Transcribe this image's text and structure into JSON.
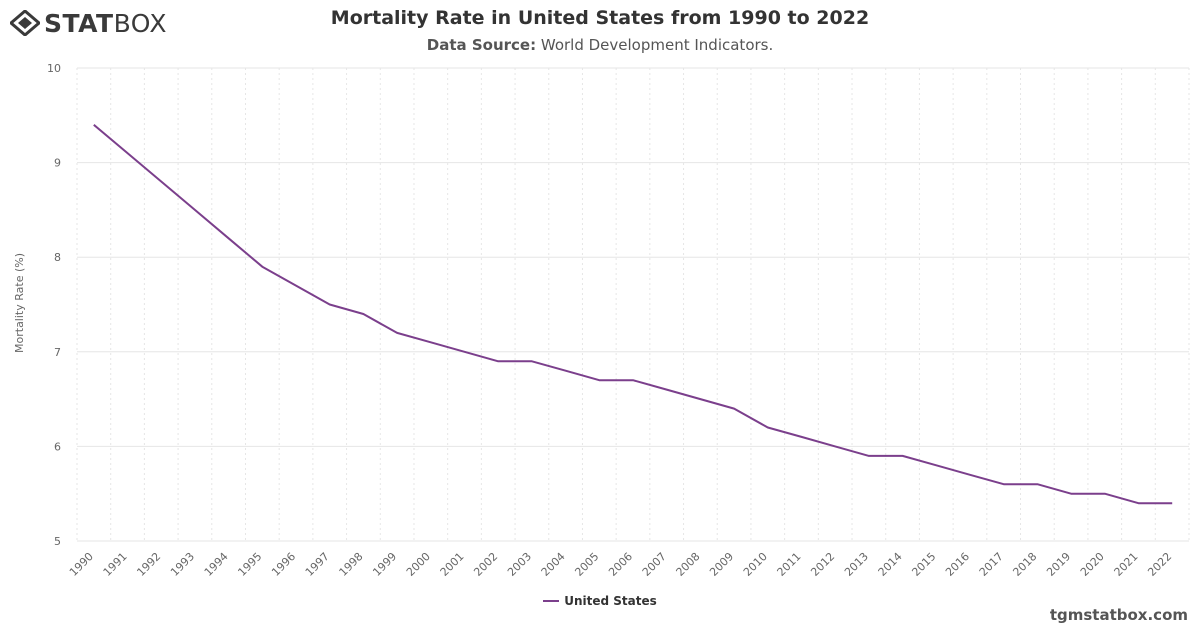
{
  "brand": {
    "logo_bold": "STAT",
    "logo_light": "BOX"
  },
  "header": {
    "title": "Mortality Rate in United States from 1990 to 2022",
    "source_label": "Data Source:",
    "source_value": "World Development Indicators."
  },
  "footer": {
    "site": "tgmstatbox.com"
  },
  "colors": {
    "series": "#7b3f8c",
    "grid": "#e6e6e6",
    "axis_text": "#666666"
  },
  "chart_data": {
    "type": "line",
    "title": "Mortality Rate in United States from 1990 to 2022",
    "xlabel": "",
    "ylabel": "Mortality Rate (%)",
    "ylim": [
      5,
      10
    ],
    "yticks": [
      5,
      6,
      7,
      8,
      9,
      10
    ],
    "grid": true,
    "legend_position": "bottom-center",
    "x": [
      "1990",
      "1991",
      "1992",
      "1993",
      "1994",
      "1995",
      "1996",
      "1997",
      "1998",
      "1999",
      "2000",
      "2001",
      "2002",
      "2003",
      "2004",
      "2005",
      "2006",
      "2007",
      "2008",
      "2009",
      "2010",
      "2011",
      "2012",
      "2013",
      "2014",
      "2015",
      "2016",
      "2017",
      "2018",
      "2019",
      "2020",
      "2021",
      "2022"
    ],
    "series": [
      {
        "name": "United States",
        "values": [
          9.4,
          9.1,
          8.8,
          8.5,
          8.2,
          7.9,
          7.7,
          7.5,
          7.4,
          7.2,
          7.1,
          7.0,
          6.9,
          6.9,
          6.8,
          6.7,
          6.7,
          6.6,
          6.5,
          6.4,
          6.2,
          6.1,
          6.0,
          5.9,
          5.9,
          5.8,
          5.7,
          5.6,
          5.6,
          5.5,
          5.5,
          5.4,
          5.4
        ]
      }
    ]
  }
}
